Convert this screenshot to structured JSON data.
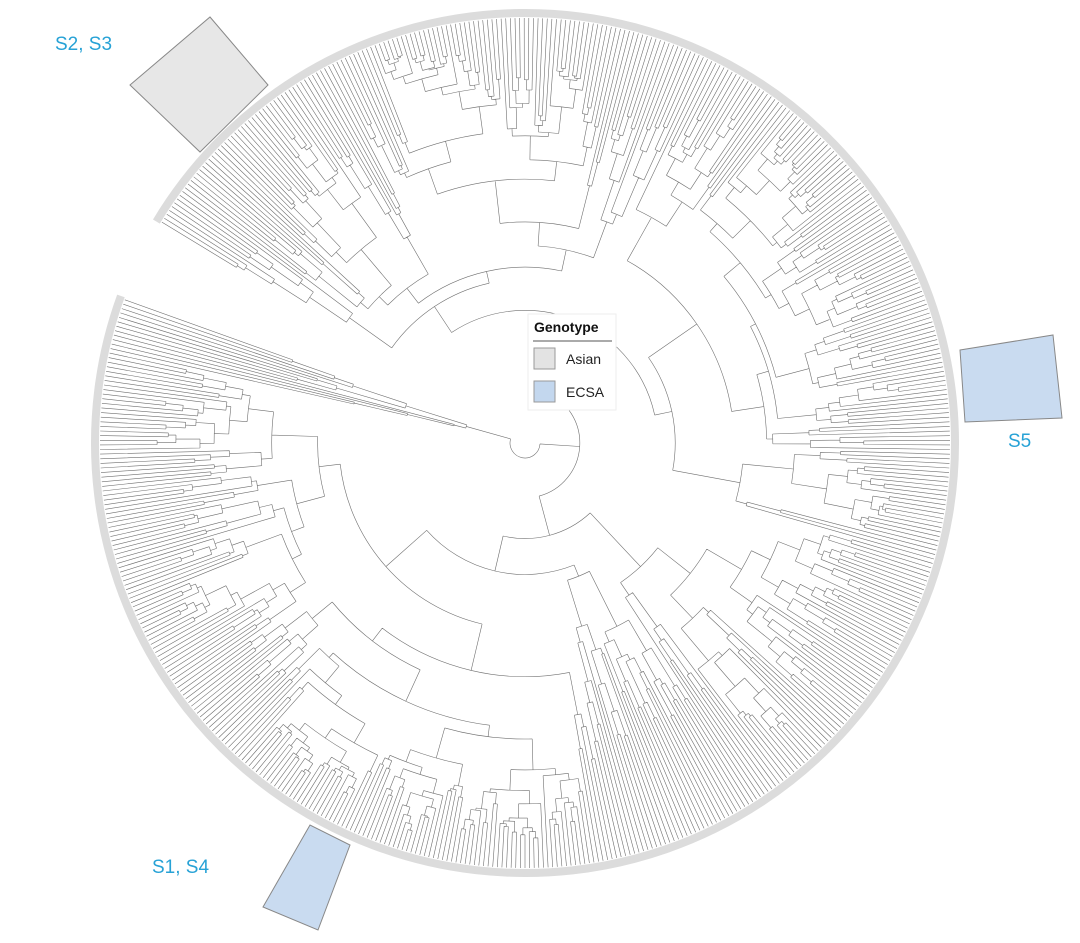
{
  "labels": [
    "S2, S3",
    "S5",
    "S1, S4"
  ],
  "legend": {
    "title": "Genotype",
    "items": [
      "Asian",
      "ECSA"
    ]
  }
}
